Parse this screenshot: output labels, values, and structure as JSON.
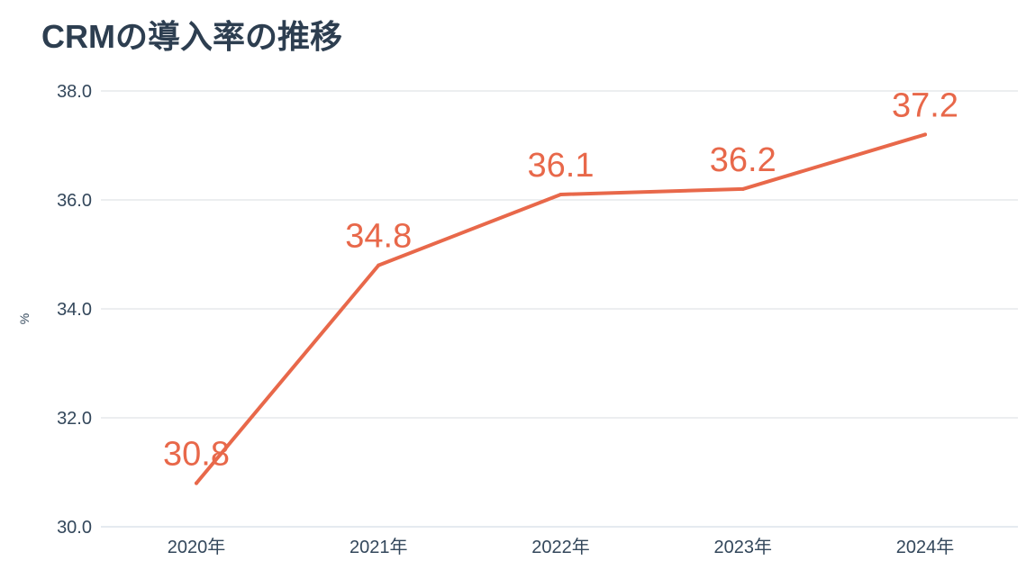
{
  "chart_data": {
    "type": "line",
    "title": "CRMの導入率の推移",
    "xlabel": "",
    "ylabel": "%",
    "categories": [
      "2020年",
      "2021年",
      "2022年",
      "2023年",
      "2024年"
    ],
    "series": [
      {
        "values": [
          30.8,
          34.8,
          36.1,
          36.2,
          37.2
        ],
        "data_labels": [
          "30.8",
          "34.8",
          "36.1",
          "36.2",
          "37.2"
        ]
      }
    ],
    "ylim": [
      30.0,
      38.0
    ],
    "y_ticks": [
      30.0,
      32.0,
      34.0,
      36.0,
      38.0
    ],
    "y_tick_labels": [
      "30.0",
      "32.0",
      "34.0",
      "36.0",
      "38.0"
    ],
    "grid": true,
    "legend": "none",
    "colors": {
      "line": "#e8684a",
      "grid": "#d9dde2",
      "axis": "#cbd6e2",
      "text": "#33475b",
      "title": "#2d3e50"
    }
  }
}
